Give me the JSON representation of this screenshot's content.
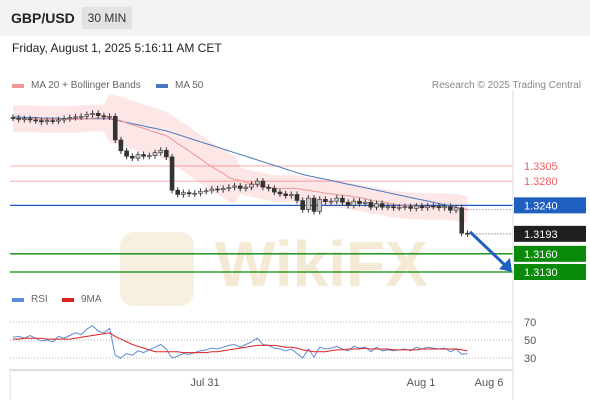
{
  "header": {
    "symbol": "GBP/USD",
    "timeframe": "30 MIN"
  },
  "datetime": "Friday, August 1, 2025 5:16:11 AM CET",
  "legend": {
    "ma20_label": "MA 20 + Bollinger Bands",
    "ma50_label": "MA 50",
    "credit": "Research © 2025 Trading Central"
  },
  "rsi_legend": {
    "rsi_label": "RSI",
    "ma_label": "9MA"
  },
  "colors": {
    "bollinger_fill": "#fde2e2",
    "ma20": "#f19595",
    "ma50": "#4a78c0",
    "resistance": "#f06060",
    "pivot": "#1f5fbf",
    "support": "#0a8a0a",
    "candle_up": "#c9c9c9",
    "candle_down": "#333333",
    "rsi": "#5b8bd9",
    "rsi_ma": "#dd2222"
  },
  "chart_data": {
    "type": "candlestick",
    "instrument": "GBP/USD",
    "timeframe": "30 MIN",
    "x_ticks": [
      "Jul 31",
      "Aug 1",
      "Aug 6"
    ],
    "price_levels": [
      {
        "value": 1.3305,
        "label": "1.3305",
        "kind": "resistance"
      },
      {
        "value": 1.328,
        "label": "1.3280",
        "kind": "resistance"
      },
      {
        "value": 1.324,
        "label": "1.3240",
        "kind": "pivot"
      },
      {
        "value": 1.3193,
        "label": "1.3193",
        "kind": "last-price"
      },
      {
        "value": 1.316,
        "label": "1.3160",
        "kind": "support"
      },
      {
        "value": 1.313,
        "label": "1.3130",
        "kind": "support"
      }
    ],
    "close_series": [
      1.3384,
      1.3382,
      1.3383,
      1.3381,
      1.338,
      1.3378,
      1.338,
      1.3379,
      1.3381,
      1.3383,
      1.3385,
      1.3386,
      1.3387,
      1.339,
      1.3392,
      1.3388,
      1.3386,
      1.3387,
      1.3348,
      1.333,
      1.3321,
      1.3318,
      1.3324,
      1.3321,
      1.3322,
      1.3327,
      1.3331,
      1.332,
      1.3265,
      1.3258,
      1.3261,
      1.3259,
      1.326,
      1.3263,
      1.3264,
      1.3267,
      1.3266,
      1.3268,
      1.327,
      1.3272,
      1.3268,
      1.327,
      1.3275,
      1.328,
      1.327,
      1.3268,
      1.3262,
      1.3259,
      1.3256,
      1.3258,
      1.3248,
      1.3233,
      1.3252,
      1.323,
      1.325,
      1.3246,
      1.3247,
      1.3252,
      1.3245,
      1.324,
      1.3247,
      1.3243,
      1.3245,
      1.3237,
      1.3243,
      1.3237,
      1.3238,
      1.3236,
      1.3237,
      1.3238,
      1.3235,
      1.3239,
      1.3236,
      1.3239,
      1.3238,
      1.3236,
      1.3238,
      1.3232,
      1.3236,
      1.3194,
      1.3193
    ],
    "ma20": [
      1.3383,
      1.3383,
      1.3383,
      1.3383,
      1.3383,
      1.3382,
      1.3382,
      1.3382,
      1.3382,
      1.3382,
      1.3382,
      1.3382,
      1.3383,
      1.3383,
      1.3384,
      1.3384,
      1.3384,
      1.3384,
      1.3382,
      1.338,
      1.3376,
      1.3373,
      1.337,
      1.3367,
      1.3364,
      1.3361,
      1.3358,
      1.3355,
      1.3349,
      1.3342,
      1.3336,
      1.333,
      1.3323,
      1.3317,
      1.331,
      1.3304,
      1.3298,
      1.3293,
      1.3286,
      1.3283,
      1.3281,
      1.3278,
      1.3276,
      1.3274,
      1.3272,
      1.327,
      1.3268,
      1.3268,
      1.3268,
      1.3268,
      1.3268,
      1.3266,
      1.3265,
      1.3263,
      1.3262,
      1.326,
      1.3259,
      1.3258,
      1.3257,
      1.3256,
      1.3254,
      1.3253,
      1.3251,
      1.3248,
      1.3247,
      1.3246,
      1.3244,
      1.3242,
      1.3241,
      1.324,
      1.3239,
      1.3239,
      1.3239,
      1.3238,
      1.3238,
      1.3238,
      1.3238,
      1.3237,
      1.3237,
      1.3235,
      1.3233
    ],
    "ma50": [
      1.3386,
      1.3386,
      1.3385,
      1.3385,
      1.3385,
      1.3384,
      1.3384,
      1.3384,
      1.3384,
      1.3383,
      1.3383,
      1.3383,
      1.3383,
      1.3383,
      1.3383,
      1.3383,
      1.3383,
      1.3383,
      1.3381,
      1.3379,
      1.3377,
      1.3375,
      1.3373,
      1.3371,
      1.3369,
      1.3367,
      1.3365,
      1.3363,
      1.336,
      1.3357,
      1.3354,
      1.3351,
      1.3348,
      1.3345,
      1.3342,
      1.3339,
      1.3336,
      1.3333,
      1.333,
      1.3327,
      1.3324,
      1.3321,
      1.3318,
      1.3315,
      1.3312,
      1.3309,
      1.3306,
      1.3303,
      1.33,
      1.3297,
      1.3294,
      1.3291,
      1.3289,
      1.3287,
      1.3285,
      1.3283,
      1.3281,
      1.3279,
      1.3277,
      1.3275,
      1.3273,
      1.3271,
      1.3269,
      1.3267,
      1.3265,
      1.3263,
      1.3261,
      1.3259,
      1.3257,
      1.3255,
      1.3253,
      1.3251,
      1.3249,
      1.3247,
      1.3245,
      1.3243,
      1.3241,
      1.3239,
      1.3237,
      1.3235,
      1.3233
    ],
    "projection": {
      "from": 1.3193,
      "to": 1.313
    },
    "rsi": {
      "y_ticks": [
        70,
        50,
        30
      ],
      "rsi_series": [
        53,
        54,
        52,
        55,
        52,
        49,
        50,
        48,
        54,
        52,
        55,
        58,
        56,
        62,
        66,
        60,
        58,
        63,
        33,
        30,
        35,
        33,
        38,
        36,
        39,
        42,
        45,
        40,
        30,
        32,
        35,
        34,
        36,
        38,
        39,
        41,
        40,
        42,
        44,
        45,
        42,
        45,
        48,
        52,
        45,
        44,
        41,
        40,
        38,
        40,
        35,
        30,
        40,
        31,
        42,
        40,
        41,
        43,
        40,
        38,
        43,
        41,
        42,
        37,
        42,
        38,
        39,
        38,
        39,
        40,
        38,
        42,
        40,
        42,
        41,
        40,
        41,
        37,
        40,
        34,
        35
      ],
      "ma_series": [
        51,
        51,
        52,
        52,
        52,
        52,
        51,
        51,
        51,
        51,
        51,
        52,
        53,
        54,
        55,
        56,
        57,
        58,
        54,
        51,
        48,
        45,
        43,
        41,
        39,
        37,
        37,
        37,
        37,
        37,
        36,
        36,
        36,
        36,
        36,
        37,
        37,
        38,
        39,
        40,
        41,
        42,
        43,
        44,
        44,
        44,
        44,
        43,
        42,
        42,
        41,
        39,
        38,
        37,
        37,
        37,
        38,
        39,
        39,
        40,
        40,
        40,
        41,
        40,
        40,
        40,
        40,
        39,
        39,
        39,
        39,
        39,
        40,
        40,
        40,
        40,
        40,
        40,
        40,
        39,
        38
      ]
    }
  }
}
